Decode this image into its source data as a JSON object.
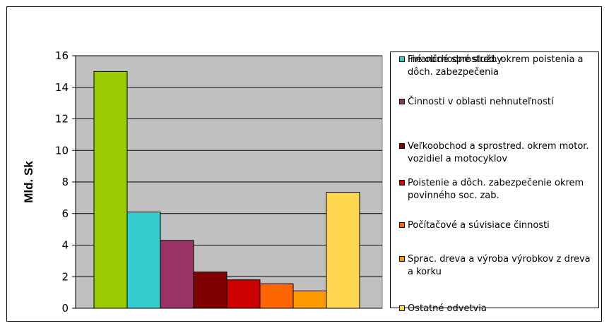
{
  "chart_data": {
    "type": "bar",
    "ylabel": "Mld. Sk",
    "ylim": [
      0,
      16
    ],
    "yticks": [
      "0",
      "2",
      "4",
      "6",
      "8",
      "10",
      "12",
      "14",
      "16"
    ],
    "grid": "horizontal",
    "legend_position": "right",
    "categories": [
      "Finančné sprostred. okrem poistenia a dôch. zabezpečenia",
      "Iné obchodné služby",
      "Činnosti v oblasti nehnuteľností",
      "Veľkoobchod a sprostred. okrem motor. vozidiel a motocyklov",
      "Poistenie a dôch. zabezpečenie okrem povinného soc. zab.",
      "Počítačové a súvisiace činnosti",
      "Sprac. dreva a výroba výrobkov z dreva a korku",
      "Ostatné odvetvia"
    ],
    "values": [
      15.0,
      6.1,
      4.3,
      2.3,
      1.8,
      1.55,
      1.1,
      7.35
    ],
    "colors": [
      "#99cc00",
      "#33cccc",
      "#993366",
      "#800000",
      "#cc0000",
      "#ff6600",
      "#ff9900",
      "#ffd84f"
    ],
    "plot_background": "#c0c0c0"
  }
}
